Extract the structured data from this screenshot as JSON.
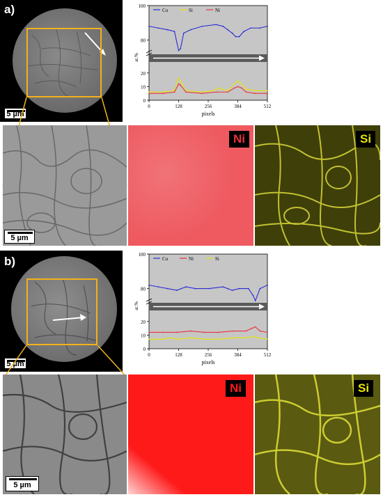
{
  "panel_a": {
    "label": "a)",
    "scale_overview": "5 µm",
    "scale_zoom": "5 µm",
    "map_ni_label": "Ni",
    "map_si_label": "Si",
    "ni_color": "#e8323c",
    "si_color": "#e6e600",
    "roi_color": "#f2b21b"
  },
  "panel_b": {
    "label": "b)",
    "scale_overview": "5 µm",
    "scale_zoom": "5 µm",
    "map_ni_label": "Ni",
    "map_si_label": "Si",
    "ni_color": "#ff1a1a",
    "si_color": "#e6e600",
    "roi_color": "#f2b21b"
  },
  "chart_data": [
    {
      "type": "line",
      "xlabel": "pixels",
      "ylabel": "at.%",
      "xlim": [
        0,
        512
      ],
      "x_ticks": [
        "0",
        "128",
        "256",
        "384",
        "512"
      ],
      "y_ticks": [
        "0",
        "10",
        "20",
        "80",
        "100"
      ],
      "axis_break": true,
      "legend_placement": "top-left",
      "series": [
        {
          "name": "Cu",
          "color": "#2b2bd6",
          "x": [
            0,
            40,
            80,
            110,
            128,
            136,
            150,
            180,
            230,
            290,
            320,
            340,
            360,
            375,
            390,
            410,
            440,
            480,
            512
          ],
          "y": [
            88,
            87,
            86,
            85,
            74,
            75,
            84,
            86,
            88,
            89,
            88,
            86,
            84,
            82,
            82,
            85,
            87,
            87,
            88
          ]
        },
        {
          "name": "Si",
          "color": "#e6e600",
          "x": [
            0,
            60,
            110,
            128,
            136,
            160,
            230,
            280,
            300,
            340,
            370,
            385,
            400,
            420,
            460,
            512
          ],
          "y": [
            6,
            6,
            7,
            16,
            14,
            7,
            6,
            7,
            9,
            7,
            12,
            14,
            12,
            8,
            7,
            7
          ]
        },
        {
          "name": "Ni",
          "color": "#e8323c",
          "x": [
            0,
            60,
            110,
            128,
            136,
            160,
            230,
            290,
            340,
            370,
            385,
            400,
            420,
            460,
            512
          ],
          "y": [
            5,
            5,
            6,
            12,
            11,
            6,
            5,
            6,
            6,
            9,
            10,
            9,
            6,
            5,
            5
          ]
        }
      ]
    },
    {
      "type": "line",
      "xlabel": "pixels",
      "ylabel": "at.%",
      "xlim": [
        0,
        512
      ],
      "x_ticks": [
        "0",
        "128",
        "256",
        "384",
        "512"
      ],
      "y_ticks": [
        "0",
        "10",
        "20",
        "80",
        "100"
      ],
      "axis_break": true,
      "legend_placement": "top-left",
      "series": [
        {
          "name": "Cu",
          "color": "#2b2bd6",
          "x": [
            0,
            40,
            80,
            120,
            160,
            200,
            260,
            320,
            340,
            360,
            390,
            430,
            450,
            460,
            480,
            512
          ],
          "y": [
            82,
            81,
            80,
            79,
            81,
            80,
            80,
            81,
            80,
            79,
            80,
            80,
            76,
            73,
            80,
            82
          ]
        },
        {
          "name": "Ni",
          "color": "#e8323c",
          "x": [
            0,
            60,
            120,
            180,
            240,
            300,
            360,
            420,
            445,
            460,
            480,
            512
          ],
          "y": [
            12,
            12,
            12,
            13,
            12,
            12,
            13,
            13,
            15,
            16,
            13,
            12
          ]
        },
        {
          "name": "Si",
          "color": "#e6e600",
          "x": [
            0,
            60,
            90,
            120,
            180,
            240,
            300,
            360,
            420,
            450,
            470,
            512
          ],
          "y": [
            7,
            7,
            8,
            7,
            8,
            7,
            7,
            8,
            8,
            9,
            8,
            7
          ]
        }
      ]
    }
  ]
}
